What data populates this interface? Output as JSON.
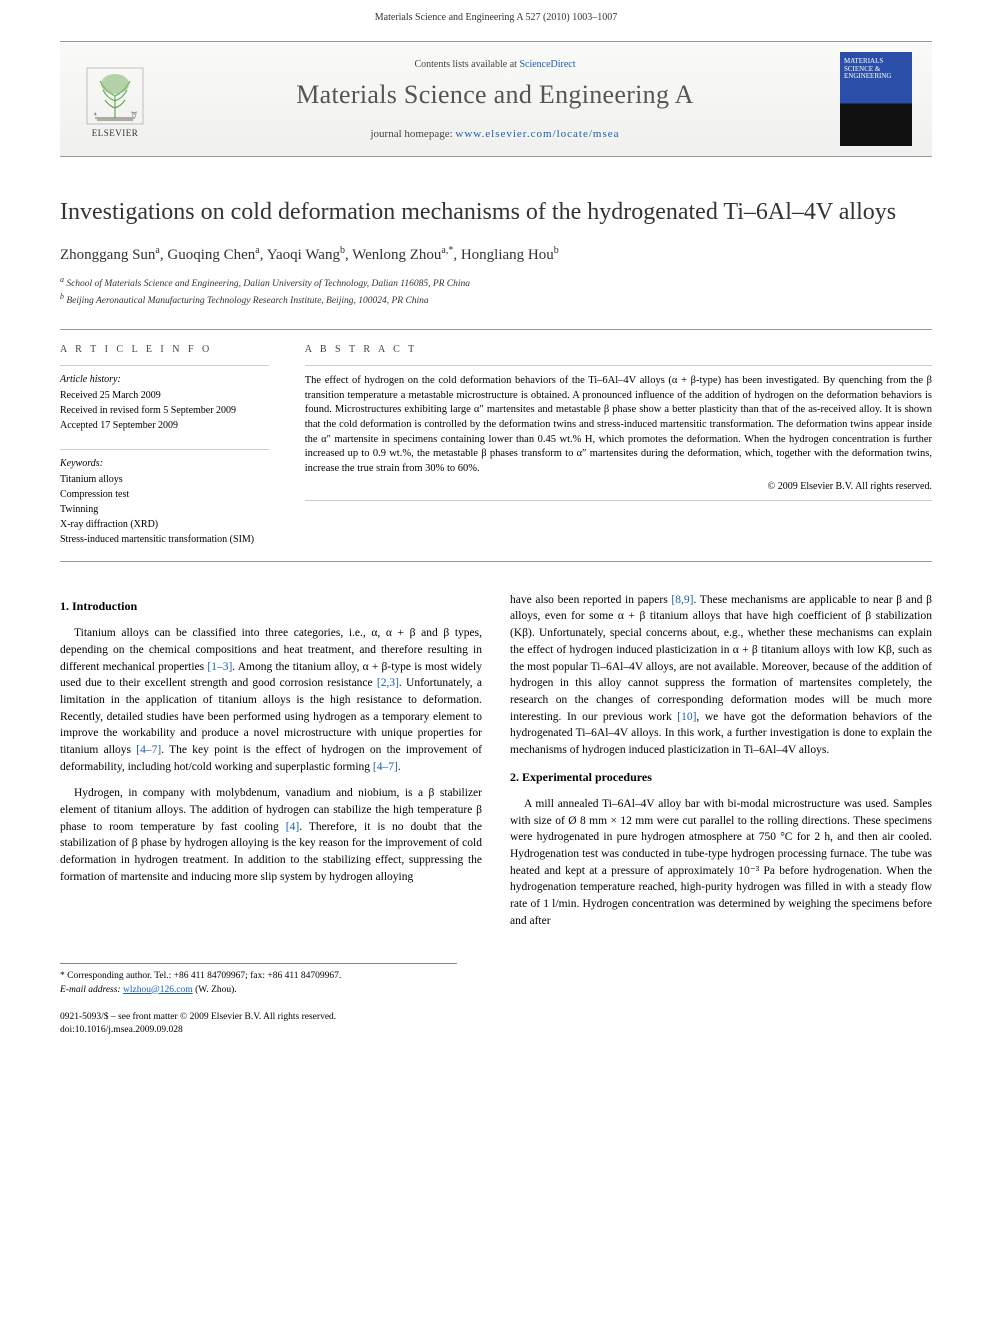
{
  "header": {
    "running_head": "Materials Science and Engineering A 527 (2010) 1003–1007"
  },
  "banner": {
    "logo_label": "ELSEVIER",
    "avail_prefix": "Contents lists available at ",
    "avail_link": "ScienceDirect",
    "journal_title": "Materials Science and Engineering A",
    "homepage_prefix": "journal homepage: ",
    "homepage_url": "www.elsevier.com/locate/msea",
    "cover_text": "MATERIALS SCIENCE & ENGINEERING"
  },
  "article": {
    "title": "Investigations on cold deformation mechanisms of the hydrogenated Ti–6Al–4V alloys",
    "authors_html": "Zhonggang Sun<sup>a</sup>, Guoqing Chen<sup>a</sup>, Yaoqi Wang<sup>b</sup>, Wenlong Zhou<sup>a,*</sup>, Hongliang Hou<sup>b</sup>",
    "affiliations": [
      "a School of Materials Science and Engineering, Dalian University of Technology, Dalian 116085, PR China",
      "b Beijing Aeronautical Manufacturing Technology Research Institute, Beijing, 100024, PR China"
    ]
  },
  "info": {
    "left_head": "A R T I C L E   I N F O",
    "right_head": "A B S T R A C T",
    "history_head": "Article history:",
    "history": [
      "Received 25 March 2009",
      "Received in revised form 5 September 2009",
      "Accepted 17 September 2009"
    ],
    "keywords_head": "Keywords:",
    "keywords": [
      "Titanium alloys",
      "Compression test",
      "Twinning",
      "X-ray diffraction (XRD)",
      "Stress-induced martensitic transformation (SIM)"
    ],
    "abstract": "The effect of hydrogen on the cold deformation behaviors of the Ti–6Al–4V alloys (α + β-type) has been investigated. By quenching from the β transition temperature a metastable microstructure is obtained. A pronounced influence of the addition of hydrogen on the deformation behaviors is found. Microstructures exhibiting large α″ martensites and metastable β phase show a better plasticity than that of the as-received alloy. It is shown that the cold deformation is controlled by the deformation twins and stress-induced martensitic transformation. The deformation twins appear inside the α″ martensite in specimens containing lower than 0.45 wt.% H, which promotes the deformation. When the hydrogen concentration is further increased up to 0.9 wt.%, the metastable β phases transform to α″ martensites during the deformation, which, together with the deformation twins, increase the true strain from 30% to 60%.",
    "copyright": "© 2009 Elsevier B.V. All rights reserved."
  },
  "body": {
    "sec1_head": "1.  Introduction",
    "sec1_p1": "Titanium alloys can be classified into three categories, i.e., α, α + β and β types, depending on the chemical compositions and heat treatment, and therefore resulting in different mechanical properties [1–3]. Among the titanium alloy, α + β-type is most widely used due to their excellent strength and good corrosion resistance [2,3]. Unfortunately, a limitation in the application of titanium alloys is the high resistance to deformation. Recently, detailed studies have been performed using hydrogen as a temporary element to improve the workability and produce a novel microstructure with unique properties for titanium alloys [4–7]. The key point is the effect of hydrogen on the improvement of deformability, including hot/cold working and superplastic forming [4–7].",
    "sec1_p2": "Hydrogen, in company with molybdenum, vanadium and niobium, is a β stabilizer element of titanium alloys. The addition of hydrogen can stabilize the high temperature β phase to room temperature by fast cooling [4]. Therefore, it is no doubt that the stabilization of β phase by hydrogen alloying is the key reason for the improvement of cold deformation in hydrogen treatment. In addition to the stabilizing effect, suppressing the formation of martensite and inducing more slip system by hydrogen alloying",
    "sec1_p3": "have also been reported in papers [8,9]. These mechanisms are applicable to near β and β alloys, even for some α + β titanium alloys that have high coefficient of β stabilization (Kβ). Unfortunately, special concerns about, e.g., whether these mechanisms can explain the effect of hydrogen induced plasticization in α + β titanium alloys with low Kβ, such as the most popular Ti–6Al–4V alloys, are not available. Moreover, because of the addition of hydrogen in this alloy cannot suppress the formation of martensites completely, the research on the changes of corresponding deformation modes will be much more interesting. In our previous work [10], we have got the deformation behaviors of the hydrogenated Ti–6Al–4V alloys. In this work, a further investigation is done to explain the mechanisms of hydrogen induced plasticization in Ti–6Al–4V alloys.",
    "sec2_head": "2.  Experimental procedures",
    "sec2_p1": "A mill annealed Ti–6Al–4V alloy bar with bi-modal microstructure was used. Samples with size of Ø 8 mm × 12 mm were cut parallel to the rolling directions. These specimens were hydrogenated in pure hydrogen atmosphere at 750 °C for 2 h, and then air cooled. Hydrogenation test was conducted in tube-type hydrogen processing furnace. The tube was heated and kept at a pressure of approximately 10⁻³ Pa before hydrogenation. When the hydrogenation temperature reached, high-purity hydrogen was filled in with a steady flow rate of 1 l/min. Hydrogen concentration was determined by weighing the specimens before and after"
  },
  "footnote": {
    "corr": "* Corresponding author. Tel.: +86 411 84709967; fax: +86 411 84709967.",
    "email_label": "E-mail address: ",
    "email": "wlzhou@126.com",
    "email_suffix": " (W. Zhou)."
  },
  "doi": {
    "line1": "0921-5093/$ – see front matter © 2009 Elsevier B.V. All rights reserved.",
    "line2": "doi:10.1016/j.msea.2009.09.028"
  },
  "colors": {
    "link": "#1a5fb4",
    "rule": "#999999",
    "text": "#000000",
    "muted": "#444444"
  }
}
